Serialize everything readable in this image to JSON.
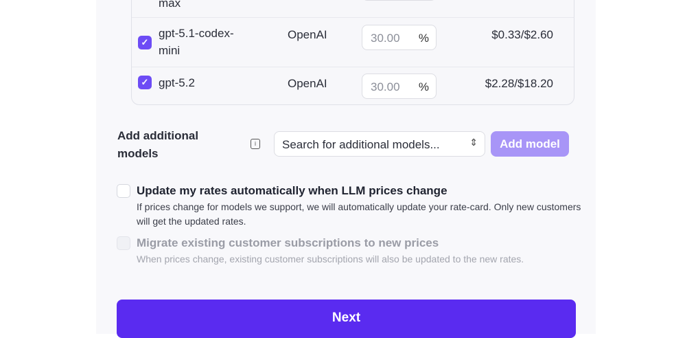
{
  "models": [
    {
      "name": "max",
      "provider": "",
      "markup": "",
      "price": ""
    },
    {
      "name": "gpt-5.1-codex-mini",
      "provider": "OpenAI",
      "markup": "30.00",
      "price": "$0.33/$2.60"
    },
    {
      "name": "gpt-5.2",
      "provider": "OpenAI",
      "markup": "30.00",
      "price": "$2.28/$18.20"
    }
  ],
  "percent_symbol": "%",
  "add_models": {
    "label": "Add additional models",
    "placeholder": "Search for additional models...",
    "button": "Add model"
  },
  "options": [
    {
      "title": "Update my rates automatically when LLM prices change",
      "desc": "If prices change for models we support, we will automatically update your rate-card. Only new customers will get the updated rates.",
      "checked": false,
      "disabled": false
    },
    {
      "title": "Migrate existing customer subscriptions to new prices",
      "desc": "When prices change, existing customer subscriptions will also be updated to the new rates.",
      "checked": false,
      "disabled": true
    }
  ],
  "next_label": "Next",
  "colors": {
    "accent": "#5a2bf0",
    "checkbox": "#6d4cf5",
    "add_button_disabled": "#a895f7"
  }
}
